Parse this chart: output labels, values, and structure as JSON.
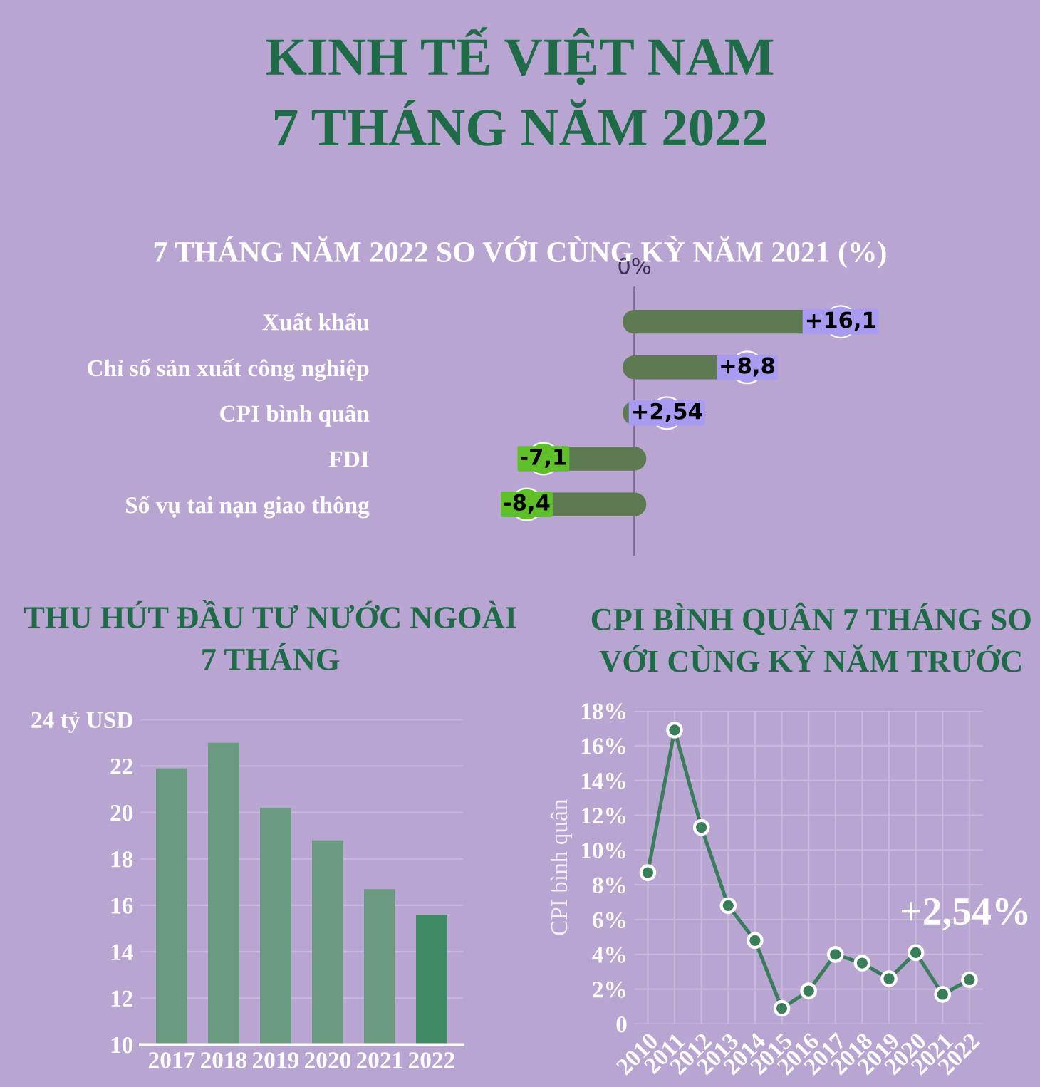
{
  "chart_data": [
    {
      "type": "lollipop",
      "orientation": "horizontal",
      "title": "7 THÁNG NĂM 2022 SO VỚI CÙNG KỲ NĂM 2021 (%)",
      "annotations": [
        "KINH TẾ VIỆT NAM\n7 THÁNG NĂM 2022"
      ],
      "categories": [
        "Xuất khẩu",
        "Chỉ số sản xuất công nghiệp",
        "CPI bình quân",
        "FDI",
        "Số vụ tai nạn giao thông"
      ],
      "values": [
        16.1,
        8.8,
        2.54,
        -7.1,
        -8.4
      ],
      "value_labels": [
        "+16,1",
        "+8,8",
        "+2,54",
        "-7,1",
        "-8,4"
      ],
      "colors": [
        "#a99cf0",
        "#a99cf0",
        "#a99cf0",
        "#5fc02a",
        "#5fc02a"
      ],
      "color": "#5e7a52",
      "ref_lines": [
        {
          "axis": "x",
          "value": 0,
          "label": "0%",
          "color": "#7a6a8f"
        }
      ],
      "marker": "circle",
      "tick_labels": "y",
      "grid": false
    },
    {
      "type": "bar",
      "title": "THU HÚT ĐẦU TƯ NƯỚC NGOÀI\n7 THÁNG",
      "categories": [
        "2017",
        "2018",
        "2019",
        "2020",
        "2021",
        "2022"
      ],
      "values": [
        21.9,
        23.0,
        20.2,
        18.8,
        16.7,
        15.6
      ],
      "colors": [
        "#6a9a80",
        "#6a9a80",
        "#6a9a80",
        "#6a9a80",
        "#6a9a80",
        "#3f8a64"
      ],
      "ylim": [
        10,
        24
      ],
      "yticks": [
        10,
        12,
        14,
        16,
        18,
        20,
        22,
        {
          "value": 24,
          "label": "24 tỷ USD"
        }
      ],
      "grid": "y"
    },
    {
      "type": "line",
      "title": "CPI BÌNH QUÂN 7 THÁNG SO\nVỚI CÙNG KỲ NĂM TRƯỚC",
      "ylabel": "CPI bình quân",
      "categories": [
        "2010",
        "2011",
        "2012",
        "2013",
        "2014",
        "2015",
        "2016",
        "2017",
        "2018",
        "2019",
        "2020",
        "2021",
        "2022"
      ],
      "series": [
        {
          "color": "#3a7d5a",
          "values": [
            8.7,
            16.9,
            11.3,
            6.8,
            4.8,
            0.9,
            1.9,
            4.0,
            3.5,
            2.6,
            4.1,
            1.7,
            2.54
          ]
        }
      ],
      "ylim": [
        0,
        18
      ],
      "yticks": [
        {
          "value": 0,
          "label": "0"
        },
        {
          "value": 2,
          "label": "2%"
        },
        {
          "value": 4,
          "label": "4%"
        },
        {
          "value": 6,
          "label": "6%"
        },
        {
          "value": 8,
          "label": "8%"
        },
        {
          "value": 10,
          "label": "10%"
        },
        {
          "value": 12,
          "label": "12%"
        },
        {
          "value": 14,
          "label": "14%"
        },
        {
          "value": 16,
          "label": "16%"
        },
        {
          "value": 18,
          "label": "18%"
        }
      ],
      "annotations": [
        {
          "text": "+2,54%",
          "x": "2022",
          "y": 2.54
        }
      ],
      "marker": "circle",
      "line_style": "solid",
      "grid": true
    }
  ]
}
